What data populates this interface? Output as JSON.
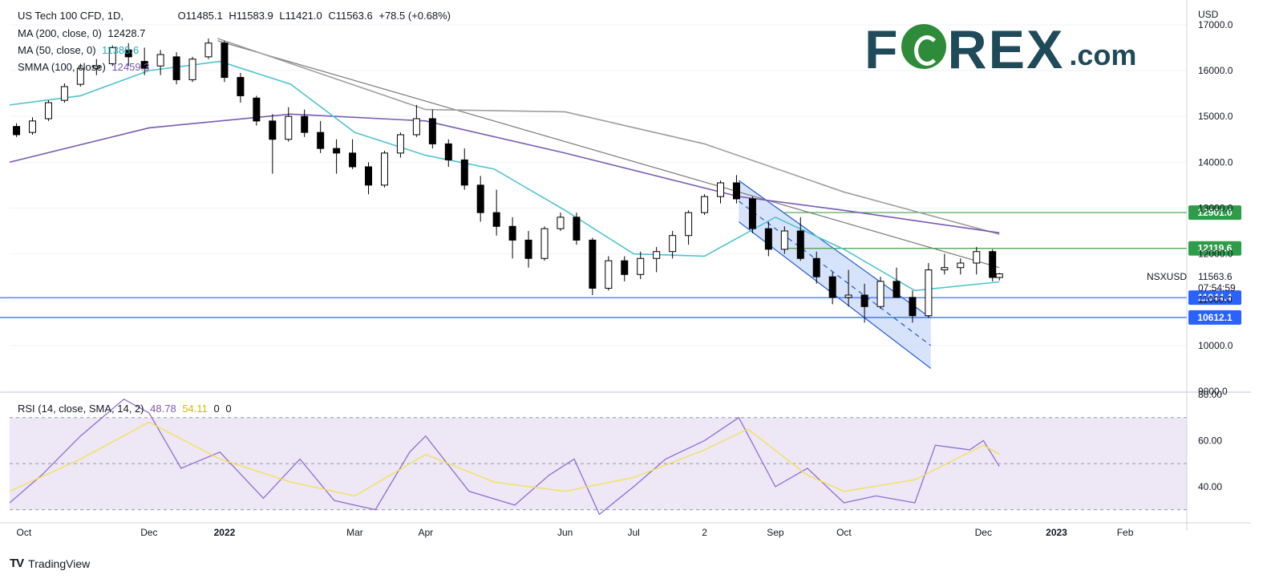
{
  "header": {
    "symbol": "US Tech 100 CFD, 1D,",
    "open": "O11485.1",
    "high": "H11583.9",
    "low": "L11421.0",
    "close": "C11563.6",
    "change": "+78.5 (+0.68%)",
    "ma200_label": "MA (200, close, 0)",
    "ma200_value": "12428.7",
    "ma50_label": "MA (50, close, 0)",
    "ma50_value": "11388.6",
    "smma_label": "SMMA (100, close)",
    "smma_value": "12459.3"
  },
  "rsi_header": {
    "label": "RSI (14, close, SMA, 14, 2)",
    "value": "48.78",
    "sma_value": "54.11",
    "extra1": "0",
    "extra2": "0"
  },
  "logo": {
    "main_left": "F",
    "main_right": "REX",
    "suffix": ".com"
  },
  "footer": {
    "brand": "TradingView",
    "logo_mark": "TV"
  },
  "colors": {
    "up": "#ffffff",
    "down": "#000000",
    "ma200": "#9e9e9e",
    "ma50": "#4fc3d1",
    "smma": "#7b5ab4",
    "hline_blue": "#2962ff",
    "hline_green": "#43a047",
    "rsi": "#8e6fd0",
    "rsi_sma": "#f5e04a",
    "rsi_band": "#ede7f6",
    "channel_fill": "#bbd0f6",
    "channel_line": "#1e5ad4",
    "badge_green": "#2e9d4a",
    "badge_blue": "#2962ff"
  },
  "chart_data": [
    {
      "type": "candlestick",
      "title": "US Tech 100 CFD, 1D",
      "y_unit": "USD",
      "ylim": [
        9000,
        17400
      ],
      "y_ticks": [
        "9000.0",
        "10000.0",
        "11000.0",
        "12000.0",
        "13000.0",
        "14000.0",
        "15000.0",
        "16000.0",
        "17000.0"
      ],
      "x_ticks": [
        "Oct",
        "Dec",
        "2022",
        "Mar",
        "Apr",
        "Jun",
        "Jul",
        "2",
        "Sep",
        "Oct",
        "Dec",
        "2023",
        "Feb"
      ],
      "x_range": [
        "2021-10-01",
        "2023-02-28"
      ],
      "price_label": {
        "symbol": "NSXUSD",
        "price": "11563.6",
        "countdown": "07:54:59"
      },
      "horizontal_levels": [
        {
          "value": 12901.0,
          "label": "12901.0",
          "color": "green"
        },
        {
          "value": 12119.6,
          "label": "12119.6",
          "color": "green"
        },
        {
          "value": 11044.4,
          "label": "11044.4",
          "color": "blue"
        },
        {
          "value": 10612.1,
          "label": "10612.1",
          "color": "blue"
        }
      ],
      "trendline": {
        "start": [
          "2021-12-31",
          16650
        ],
        "end": [
          "2022-12-08",
          11700
        ]
      },
      "channel": {
        "upper": [
          [
            "2022-08-16",
            13600
          ],
          [
            "2022-11-08",
            10600
          ]
        ],
        "lower": [
          [
            "2022-08-16",
            12700
          ],
          [
            "2022-11-08",
            9500
          ]
        ],
        "median": [
          [
            "2022-08-16",
            13150
          ],
          [
            "2022-11-08",
            10000
          ]
        ]
      },
      "series": [
        {
          "name": "MA (200, close, 0)",
          "points": [
            [
              "2021-12-31",
              16700
            ],
            [
              "2022-04-01",
              15150
            ],
            [
              "2022-06-01",
              15100
            ],
            [
              "2022-08-01",
              14400
            ],
            [
              "2022-10-01",
              13350
            ],
            [
              "2022-12-08",
              12428.7
            ]
          ]
        },
        {
          "name": "SMMA (100, close)",
          "points": [
            [
              "2021-10-01",
              14000
            ],
            [
              "2021-12-01",
              14750
            ],
            [
              "2022-02-01",
              15050
            ],
            [
              "2022-04-01",
              14900
            ],
            [
              "2022-06-01",
              14200
            ],
            [
              "2022-08-16",
              13250
            ],
            [
              "2022-10-01",
              12950
            ],
            [
              "2022-12-08",
              12459.3
            ]
          ]
        },
        {
          "name": "MA (50, close, 0)",
          "points": [
            [
              "2021-10-01",
              15250
            ],
            [
              "2021-11-01",
              15450
            ],
            [
              "2021-12-01",
              16000
            ],
            [
              "2022-01-01",
              16200
            ],
            [
              "2022-02-01",
              15700
            ],
            [
              "2022-03-01",
              14650
            ],
            [
              "2022-04-01",
              14150
            ],
            [
              "2022-05-01",
              13850
            ],
            [
              "2022-06-01",
              12950
            ],
            [
              "2022-07-01",
              12000
            ],
            [
              "2022-08-01",
              11950
            ],
            [
              "2022-09-01",
              12800
            ],
            [
              "2022-10-01",
              12100
            ],
            [
              "2022-11-01",
              11200
            ],
            [
              "2022-12-08",
              11388.6
            ]
          ]
        }
      ],
      "candles": [
        [
          "2021-10-04",
          14780,
          14850,
          14550,
          14600
        ],
        [
          "2021-10-11",
          14650,
          14980,
          14600,
          14900
        ],
        [
          "2021-10-18",
          14950,
          15350,
          14900,
          15300
        ],
        [
          "2021-10-25",
          15350,
          15720,
          15300,
          15650
        ],
        [
          "2021-11-01",
          15700,
          16150,
          15650,
          16050
        ],
        [
          "2021-11-08",
          16050,
          16250,
          15900,
          16100
        ],
        [
          "2021-11-15",
          16150,
          16550,
          16100,
          16500
        ],
        [
          "2021-11-22",
          16450,
          16600,
          16100,
          16300
        ],
        [
          "2021-11-29",
          16200,
          16500,
          15900,
          16050
        ],
        [
          "2021-12-06",
          16100,
          16450,
          15900,
          16350
        ],
        [
          "2021-12-13",
          16300,
          16400,
          15700,
          15800
        ],
        [
          "2021-12-20",
          15800,
          16300,
          15750,
          16250
        ],
        [
          "2021-12-27",
          16300,
          16700,
          16250,
          16600
        ],
        [
          "2022-01-03",
          16600,
          16650,
          15750,
          15850
        ],
        [
          "2022-01-10",
          15850,
          15950,
          15300,
          15450
        ],
        [
          "2022-01-17",
          15400,
          15450,
          14800,
          14900
        ],
        [
          "2022-01-24",
          14900,
          15050,
          13750,
          14500
        ],
        [
          "2022-01-31",
          14500,
          15200,
          14450,
          15000
        ],
        [
          "2022-02-07",
          15000,
          15150,
          14550,
          14650
        ],
        [
          "2022-02-14",
          14650,
          14900,
          14200,
          14300
        ],
        [
          "2022-02-21",
          14300,
          14500,
          13750,
          14200
        ],
        [
          "2022-02-28",
          14200,
          14500,
          13850,
          13900
        ],
        [
          "2022-03-07",
          13900,
          14000,
          13300,
          13500
        ],
        [
          "2022-03-14",
          13500,
          14250,
          13450,
          14200
        ],
        [
          "2022-03-21",
          14200,
          14650,
          14100,
          14600
        ],
        [
          "2022-03-28",
          14600,
          15250,
          14550,
          14950
        ],
        [
          "2022-04-04",
          14950,
          15150,
          14300,
          14400
        ],
        [
          "2022-04-11",
          14400,
          14500,
          13900,
          14050
        ],
        [
          "2022-04-18",
          14050,
          14300,
          13400,
          13500
        ],
        [
          "2022-04-25",
          13500,
          13700,
          12700,
          12900
        ],
        [
          "2022-05-02",
          12900,
          13400,
          12400,
          12600
        ],
        [
          "2022-05-09",
          12600,
          12800,
          11900,
          12300
        ],
        [
          "2022-05-16",
          12300,
          12500,
          11700,
          11900
        ],
        [
          "2022-05-23",
          11900,
          12600,
          11850,
          12550
        ],
        [
          "2022-05-30",
          12550,
          12900,
          12500,
          12800
        ],
        [
          "2022-06-06",
          12800,
          12900,
          12200,
          12300
        ],
        [
          "2022-06-13",
          12300,
          12350,
          11100,
          11250
        ],
        [
          "2022-06-20",
          11250,
          11950,
          11200,
          11850
        ],
        [
          "2022-06-27",
          11850,
          11950,
          11400,
          11550
        ],
        [
          "2022-07-04",
          11550,
          12050,
          11450,
          11900
        ],
        [
          "2022-07-11",
          11900,
          12150,
          11600,
          12050
        ],
        [
          "2022-07-18",
          12050,
          12500,
          11900,
          12400
        ],
        [
          "2022-07-25",
          12400,
          12950,
          12200,
          12900
        ],
        [
          "2022-08-01",
          12900,
          13300,
          12850,
          13250
        ],
        [
          "2022-08-08",
          13250,
          13600,
          13100,
          13550
        ],
        [
          "2022-08-15",
          13550,
          13720,
          13100,
          13200
        ],
        [
          "2022-08-22",
          13200,
          13250,
          12450,
          12550
        ],
        [
          "2022-08-29",
          12550,
          12700,
          11950,
          12100
        ],
        [
          "2022-09-05",
          12100,
          12600,
          12000,
          12500
        ],
        [
          "2022-09-12",
          12500,
          12800,
          11850,
          11900
        ],
        [
          "2022-09-19",
          11900,
          12050,
          11350,
          11500
        ],
        [
          "2022-09-26",
          11500,
          11600,
          10900,
          11050
        ],
        [
          "2022-10-03",
          11050,
          11650,
          10850,
          11100
        ],
        [
          "2022-10-10",
          11100,
          11350,
          10500,
          10850
        ],
        [
          "2022-10-17",
          10850,
          11500,
          10800,
          11400
        ],
        [
          "2022-10-24",
          11400,
          11700,
          11050,
          11050
        ],
        [
          "2022-10-31",
          11050,
          11200,
          10500,
          10650
        ],
        [
          "2022-11-07",
          10650,
          11800,
          10600,
          11650
        ],
        [
          "2022-11-14",
          11650,
          12000,
          11550,
          11700
        ],
        [
          "2022-11-21",
          11700,
          11900,
          11550,
          11800
        ],
        [
          "2022-11-28",
          11800,
          12150,
          11550,
          12050
        ],
        [
          "2022-12-05",
          12050,
          12100,
          11400,
          11485.1
        ],
        [
          "2022-12-08",
          11485.1,
          11583.9,
          11421.0,
          11563.6
        ]
      ]
    },
    {
      "type": "line",
      "title": "RSI (14, close, SMA, 14, 2)",
      "ylim": [
        25,
        80
      ],
      "y_ticks": [
        "40.00",
        "60.00",
        "80.00"
      ],
      "band": [
        30,
        70
      ],
      "midline": 50,
      "series": [
        {
          "name": "RSI",
          "points": [
            [
              "2021-10-01",
              33
            ],
            [
              "2021-10-15",
              45
            ],
            [
              "2021-11-01",
              62
            ],
            [
              "2021-11-20",
              78
            ],
            [
              "2021-12-01",
              72
            ],
            [
              "2021-12-15",
              48
            ],
            [
              "2022-01-01",
              55
            ],
            [
              "2022-01-20",
              35
            ],
            [
              "2022-02-05",
              52
            ],
            [
              "2022-02-20",
              34
            ],
            [
              "2022-03-10",
              30
            ],
            [
              "2022-03-25",
              55
            ],
            [
              "2022-04-01",
              62
            ],
            [
              "2022-04-20",
              38
            ],
            [
              "2022-05-10",
              32
            ],
            [
              "2022-05-25",
              45
            ],
            [
              "2022-06-05",
              52
            ],
            [
              "2022-06-16",
              28
            ],
            [
              "2022-07-01",
              40
            ],
            [
              "2022-07-15",
              52
            ],
            [
              "2022-08-01",
              60
            ],
            [
              "2022-08-16",
              70
            ],
            [
              "2022-09-01",
              40
            ],
            [
              "2022-09-15",
              48
            ],
            [
              "2022-10-01",
              33
            ],
            [
              "2022-10-15",
              36
            ],
            [
              "2022-11-01",
              33
            ],
            [
              "2022-11-10",
              58
            ],
            [
              "2022-11-25",
              56
            ],
            [
              "2022-12-01",
              60
            ],
            [
              "2022-12-08",
              48.78
            ]
          ]
        },
        {
          "name": "SMA",
          "points": [
            [
              "2021-10-01",
              38
            ],
            [
              "2021-11-01",
              52
            ],
            [
              "2021-12-01",
              68
            ],
            [
              "2022-01-01",
              52
            ],
            [
              "2022-02-01",
              42
            ],
            [
              "2022-03-01",
              36
            ],
            [
              "2022-04-01",
              54
            ],
            [
              "2022-05-01",
              42
            ],
            [
              "2022-06-01",
              38
            ],
            [
              "2022-07-01",
              44
            ],
            [
              "2022-08-01",
              56
            ],
            [
              "2022-08-20",
              65
            ],
            [
              "2022-09-15",
              45
            ],
            [
              "2022-10-01",
              38
            ],
            [
              "2022-11-01",
              43
            ],
            [
              "2022-12-01",
              58
            ],
            [
              "2022-12-08",
              54.11
            ]
          ]
        }
      ]
    }
  ]
}
